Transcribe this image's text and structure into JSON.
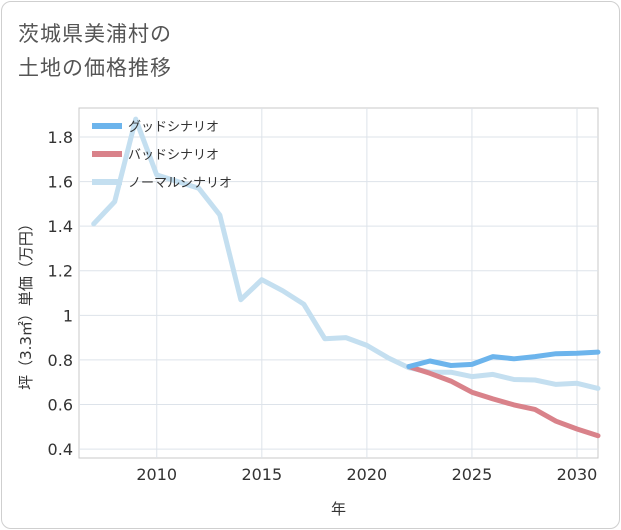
{
  "title_line1": "茨城県美浦村の",
  "title_line2": "土地の価格推移",
  "chart_data": {
    "type": "line",
    "xlabel": "年",
    "ylabel": "坪（3.3㎡）単価（万円）",
    "xlim": [
      2006.3,
      2031
    ],
    "ylim": [
      0.36,
      1.93
    ],
    "xticks": [
      2010,
      2015,
      2020,
      2025,
      2030
    ],
    "yticks": [
      0.4,
      0.6,
      0.8,
      1,
      1.2,
      1.4,
      1.6,
      1.8
    ],
    "ytick_labels": [
      "0.4",
      "0.6",
      "0.8",
      "1",
      "1.2",
      "1.4",
      "1.6",
      "1.8"
    ],
    "grid": true,
    "legend_position": "top-left",
    "series": [
      {
        "name": "グッドシナリオ",
        "color": "#6cb4ec",
        "x": [
          2022,
          2023,
          2024,
          2025,
          2026,
          2027,
          2028,
          2029,
          2030,
          2031
        ],
        "y": [
          0.77,
          0.795,
          0.775,
          0.78,
          0.815,
          0.805,
          0.815,
          0.828,
          0.83,
          0.835
        ]
      },
      {
        "name": "バッドシナリオ",
        "color": "#d9828a",
        "x": [
          2022,
          2023,
          2024,
          2025,
          2026,
          2027,
          2028,
          2029,
          2030,
          2031
        ],
        "y": [
          0.77,
          0.74,
          0.705,
          0.655,
          0.625,
          0.598,
          0.578,
          0.525,
          0.49,
          0.46
        ]
      },
      {
        "name": "ノーマルシナリオ",
        "color": "#c4dff0",
        "x": [
          2007,
          2008,
          2009,
          2010,
          2011,
          2012,
          2013,
          2014,
          2015,
          2016,
          2017,
          2018,
          2019,
          2020,
          2021,
          2022,
          2023,
          2024,
          2025,
          2026,
          2027,
          2028,
          2029,
          2030,
          2031
        ],
        "y": [
          1.41,
          1.51,
          1.88,
          1.63,
          1.6,
          1.57,
          1.45,
          1.07,
          1.16,
          1.11,
          1.05,
          0.895,
          0.9,
          0.865,
          0.81,
          0.765,
          0.745,
          0.745,
          0.725,
          0.735,
          0.712,
          0.71,
          0.69,
          0.695,
          0.672
        ]
      }
    ]
  }
}
